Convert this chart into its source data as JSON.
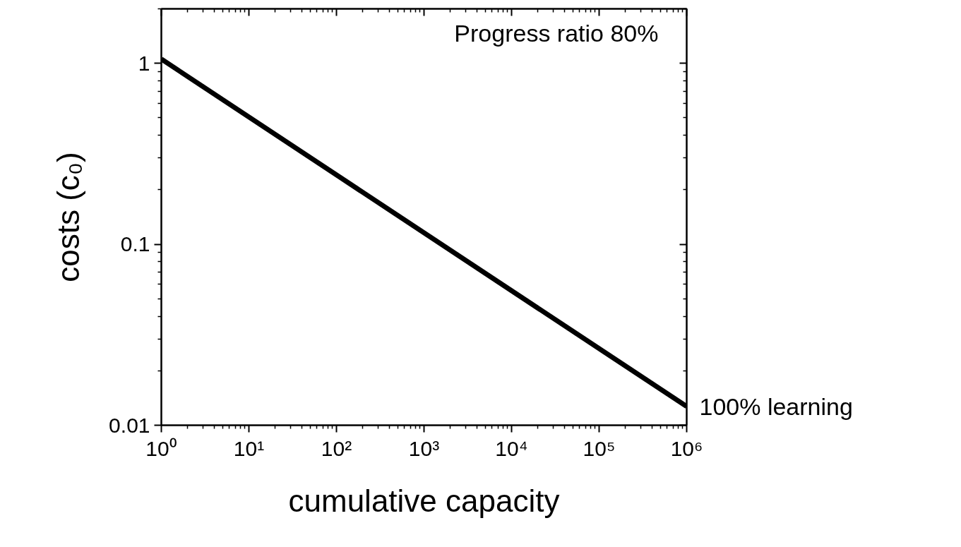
{
  "chart_data": {
    "type": "line",
    "xlabel": "cumulative capacity",
    "ylabel": "costs (c₀)",
    "log": "xy",
    "xlim": [
      1,
      1000000
    ],
    "ylim": [
      0.01,
      2
    ],
    "xticks": [
      {
        "value": 1,
        "label": "10⁰"
      },
      {
        "value": 10,
        "label": "10¹"
      },
      {
        "value": 100,
        "label": "10²"
      },
      {
        "value": 1000,
        "label": "10³"
      },
      {
        "value": 10000,
        "label": "10⁴"
      },
      {
        "value": 100000,
        "label": "10⁵"
      },
      {
        "value": 1000000,
        "label": "10⁶"
      }
    ],
    "yticks": [
      0.01,
      0.1,
      1
    ],
    "grid": false,
    "marker": "none",
    "line_style": "solid",
    "series": [
      {
        "color": "#000000",
        "x": [
          1,
          1000000
        ],
        "values": [
          1.055,
          0.0127
        ]
      }
    ],
    "annotations": [
      "Progress ratio 80%",
      {
        "text": "100% learning",
        "x": 1000000,
        "y": 0.0127
      }
    ]
  }
}
